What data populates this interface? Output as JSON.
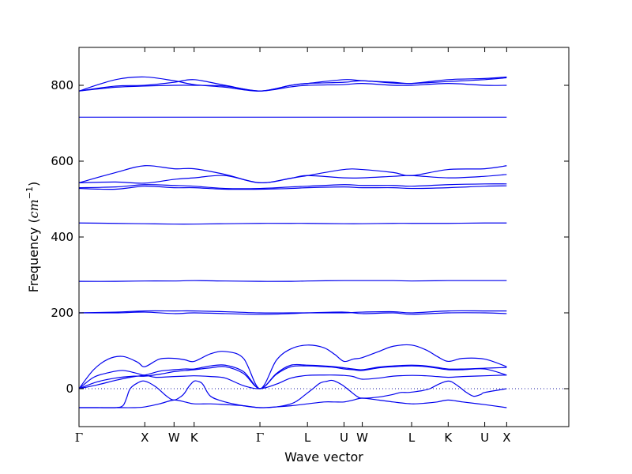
{
  "chart_data": {
    "type": "line",
    "xlabel": "Wave vector",
    "ylabel_prefix": "Frequency (",
    "ylabel_unit_base": "cm",
    "ylabel_unit_exp": "−1",
    "ylabel_suffix": ")",
    "ylim": [
      -100,
      900
    ],
    "yticks": [
      0,
      200,
      400,
      600,
      800
    ],
    "ytick_labels": [
      "0",
      "200",
      "400",
      "600",
      "800"
    ],
    "xlim": [
      0,
      13.4
    ],
    "xticks": [
      0,
      1.8,
      2.6,
      3.15,
      4.95,
      6.25,
      7.25,
      7.75,
      9.1,
      10.1,
      11.1,
      11.7
    ],
    "xtick_labels": [
      "Γ",
      "X",
      "W",
      "K",
      "Γ",
      "L",
      "U",
      "W",
      "L",
      "K",
      "U",
      "X"
    ],
    "zero_line": true,
    "series_color": "#0000ee",
    "zero_line_color": "#1a1aa0",
    "series": [
      {
        "x": [
          0,
          0.4,
          0.8,
          1.2,
          1.6,
          1.8,
          2.2,
          2.6,
          2.9,
          3.15,
          3.6,
          4.0,
          4.5,
          4.95,
          5.4,
          5.8,
          6.25,
          6.7,
          7.0,
          7.25,
          7.5,
          7.75,
          8.2,
          8.6,
          9.1,
          9.5,
          9.8,
          10.1,
          10.5,
          11.1,
          11.7
        ],
        "y": [
          0,
          50,
          78,
          85,
          70,
          58,
          78,
          80,
          76,
          72,
          92,
          98,
          80,
          0,
          75,
          105,
          115,
          108,
          90,
          72,
          78,
          82,
          98,
          112,
          115,
          102,
          85,
          72,
          80,
          78,
          58
        ]
      },
      {
        "x": [
          0,
          0.4,
          0.8,
          1.2,
          1.6,
          1.8,
          2.2,
          2.6,
          2.9,
          3.15,
          3.6,
          4.0,
          4.5,
          4.95,
          5.4,
          5.8,
          6.25,
          6.7,
          7.0,
          7.25,
          7.5,
          7.75,
          8.2,
          8.6,
          9.1,
          9.5,
          9.8,
          10.1,
          10.5,
          11.1,
          11.7
        ],
        "y": [
          0,
          30,
          42,
          48,
          40,
          36,
          46,
          50,
          52,
          52,
          60,
          62,
          45,
          0,
          40,
          62,
          62,
          60,
          58,
          55,
          52,
          50,
          57,
          60,
          62,
          60,
          56,
          52,
          52,
          54,
          56
        ]
      },
      {
        "x": [
          0,
          0.5,
          1.0,
          1.5,
          1.8,
          2.2,
          2.6,
          2.9,
          3.15,
          3.6,
          4.0,
          4.5,
          4.95,
          5.4,
          5.8,
          6.25,
          6.7,
          7.0,
          7.25,
          7.5,
          7.75,
          8.2,
          8.6,
          9.1,
          9.5,
          9.8,
          10.1,
          10.5,
          11.1,
          11.7
        ],
        "y": [
          0,
          18,
          28,
          33,
          33,
          38,
          45,
          48,
          50,
          55,
          58,
          40,
          0,
          38,
          58,
          60,
          58,
          56,
          52,
          50,
          48,
          55,
          58,
          60,
          58,
          54,
          50,
          50,
          52,
          36
        ]
      },
      {
        "x": [
          0,
          0.5,
          1.0,
          1.4,
          1.8,
          2.1,
          2.6,
          2.9,
          3.15,
          3.6,
          4.0,
          4.5,
          4.95,
          5.4,
          5.8,
          6.25,
          6.7,
          7.0,
          7.25,
          7.5,
          7.75,
          8.2,
          8.6,
          9.1,
          9.5,
          9.8,
          10.1,
          10.5,
          11.1,
          11.7
        ],
        "y": [
          0,
          10,
          22,
          30,
          35,
          30,
          32,
          33,
          34,
          32,
          28,
          8,
          0,
          12,
          28,
          35,
          36,
          36,
          35,
          32,
          25,
          28,
          33,
          35,
          34,
          32,
          30,
          32,
          34,
          36
        ]
      },
      {
        "x": [
          0,
          0.5,
          1.0,
          1.2,
          1.3,
          1.4,
          1.6,
          1.8,
          2.1,
          2.4,
          2.6,
          2.8,
          2.9,
          3.0,
          3.15,
          3.3,
          3.4,
          3.6,
          4.0,
          4.5,
          4.95,
          5.4,
          5.8,
          6.0,
          6.2,
          6.4,
          6.6,
          6.8,
          6.9,
          7.0,
          7.2,
          7.4,
          7.6,
          7.75,
          8.2,
          8.6,
          8.8,
          9.0,
          9.2,
          9.4,
          9.6,
          9.8,
          10.0,
          10.1,
          10.2,
          10.4,
          10.6,
          10.8,
          11.0,
          11.1,
          11.7
        ],
        "y": [
          -50,
          -50,
          -50,
          -45,
          -25,
          0,
          15,
          20,
          5,
          -20,
          -30,
          -20,
          -10,
          5,
          20,
          18,
          10,
          -20,
          -35,
          -45,
          -50,
          -48,
          -40,
          -30,
          -15,
          0,
          15,
          20,
          22,
          20,
          10,
          -5,
          -20,
          -25,
          -22,
          -15,
          -10,
          -10,
          -8,
          -5,
          0,
          10,
          18,
          20,
          18,
          5,
          -10,
          -20,
          -15,
          -10,
          0
        ]
      },
      {
        "x": [
          0,
          0.5,
          1.0,
          1.5,
          1.8,
          2.2,
          2.6,
          2.9,
          3.15,
          3.6,
          4.0,
          4.5,
          4.95,
          5.4,
          5.8,
          6.25,
          6.7,
          7.0,
          7.25,
          7.5,
          7.75,
          8.2,
          8.6,
          9.1,
          9.5,
          9.8,
          10.1,
          10.5,
          11.1,
          11.7
        ],
        "y": [
          -50,
          -50,
          -50,
          -50,
          -48,
          -40,
          -30,
          -35,
          -40,
          -40,
          -42,
          -45,
          -50,
          -48,
          -45,
          -40,
          -35,
          -35,
          -35,
          -30,
          -25,
          -30,
          -35,
          -40,
          -38,
          -35,
          -30,
          -35,
          -42,
          -50
        ]
      },
      {
        "x": [
          0,
          1.0,
          1.8,
          2.6,
          3.15,
          4.0,
          4.95,
          5.8,
          6.25,
          7.25,
          7.75,
          8.6,
          9.1,
          10.1,
          11.1,
          11.7
        ],
        "y": [
          200,
          202,
          205,
          205,
          205,
          203,
          200,
          200,
          200,
          200,
          202,
          203,
          200,
          205,
          205,
          205
        ]
      },
      {
        "x": [
          0,
          1.0,
          1.8,
          2.6,
          3.15,
          4.0,
          4.95,
          5.8,
          6.25,
          7.25,
          7.75,
          8.6,
          9.1,
          10.1,
          11.1,
          11.7
        ],
        "y": [
          200,
          200,
          202,
          198,
          200,
          198,
          196,
          198,
          200,
          202,
          198,
          200,
          196,
          200,
          200,
          198
        ]
      },
      {
        "x": [
          0,
          1.0,
          1.8,
          2.6,
          3.15,
          4.0,
          4.95,
          5.8,
          6.25,
          7.25,
          7.75,
          8.6,
          9.1,
          10.1,
          11.1,
          11.7
        ],
        "y": [
          283,
          283,
          284,
          284,
          285,
          284,
          283,
          283,
          284,
          285,
          285,
          285,
          284,
          285,
          285,
          285
        ]
      },
      {
        "x": [
          0,
          1.0,
          1.8,
          2.6,
          3.15,
          4.0,
          4.95,
          5.8,
          6.25,
          7.25,
          7.75,
          8.6,
          9.1,
          10.1,
          11.1,
          11.7
        ],
        "y": [
          437,
          436,
          435,
          434,
          434,
          435,
          436,
          436,
          436,
          435,
          435,
          436,
          436,
          436,
          437,
          437
        ]
      },
      {
        "x": [
          0,
          1.0,
          1.8,
          2.6,
          3.15,
          4.0,
          4.95,
          5.8,
          6.25,
          7.25,
          7.75,
          8.6,
          9.1,
          10.1,
          11.1,
          11.7
        ],
        "y": [
          543,
          570,
          588,
          580,
          580,
          565,
          543,
          555,
          562,
          578,
          578,
          570,
          562,
          578,
          580,
          588
        ]
      },
      {
        "x": [
          0,
          1.0,
          1.8,
          2.6,
          3.15,
          4.0,
          4.95,
          5.8,
          6.25,
          7.25,
          7.75,
          8.6,
          9.1,
          10.1,
          11.1,
          11.7
        ],
        "y": [
          543,
          545,
          542,
          552,
          556,
          562,
          543,
          555,
          562,
          556,
          556,
          560,
          562,
          556,
          560,
          565
        ]
      },
      {
        "x": [
          0,
          1.0,
          1.8,
          2.6,
          3.15,
          4.0,
          4.95,
          5.8,
          6.25,
          7.25,
          7.75,
          8.6,
          9.1,
          10.1,
          11.1,
          11.7
        ],
        "y": [
          530,
          532,
          538,
          536,
          534,
          528,
          528,
          532,
          534,
          538,
          536,
          536,
          534,
          538,
          540,
          540
        ]
      },
      {
        "x": [
          0,
          1.0,
          1.8,
          2.6,
          3.15,
          4.0,
          4.95,
          5.8,
          6.25,
          7.25,
          7.75,
          8.6,
          9.1,
          10.1,
          11.1,
          11.7
        ],
        "y": [
          528,
          526,
          534,
          530,
          530,
          526,
          526,
          528,
          530,
          532,
          530,
          530,
          528,
          530,
          534,
          535
        ]
      },
      {
        "x": [
          0,
          1.0,
          1.8,
          2.6,
          3.15,
          4.0,
          4.95,
          5.8,
          6.25,
          7.25,
          7.75,
          8.6,
          9.1,
          10.1,
          11.1,
          11.7
        ],
        "y": [
          716,
          716,
          716,
          716,
          716,
          716,
          716,
          716,
          716,
          716,
          716,
          716,
          716,
          716,
          716,
          716
        ]
      },
      {
        "x": [
          0,
          1.0,
          1.8,
          2.6,
          3.15,
          4.0,
          4.95,
          5.8,
          6.25,
          7.25,
          7.75,
          8.6,
          9.1,
          10.1,
          11.1,
          11.7
        ],
        "y": [
          785,
          815,
          822,
          812,
          802,
          795,
          785,
          800,
          805,
          815,
          812,
          808,
          805,
          815,
          818,
          822
        ]
      },
      {
        "x": [
          0,
          1.0,
          1.8,
          2.6,
          3.15,
          4.0,
          4.95,
          5.8,
          6.25,
          7.25,
          7.75,
          8.6,
          9.1,
          10.1,
          11.1,
          11.7
        ],
        "y": [
          785,
          798,
          800,
          808,
          815,
          800,
          785,
          800,
          805,
          808,
          812,
          806,
          805,
          810,
          815,
          820
        ]
      },
      {
        "x": [
          0,
          1.0,
          1.8,
          2.6,
          3.15,
          4.0,
          4.95,
          5.8,
          6.25,
          7.25,
          7.75,
          8.6,
          9.1,
          10.1,
          11.1,
          11.7
        ],
        "y": [
          785,
          795,
          798,
          800,
          800,
          798,
          785,
          796,
          800,
          802,
          805,
          800,
          800,
          805,
          800,
          800
        ]
      }
    ]
  }
}
